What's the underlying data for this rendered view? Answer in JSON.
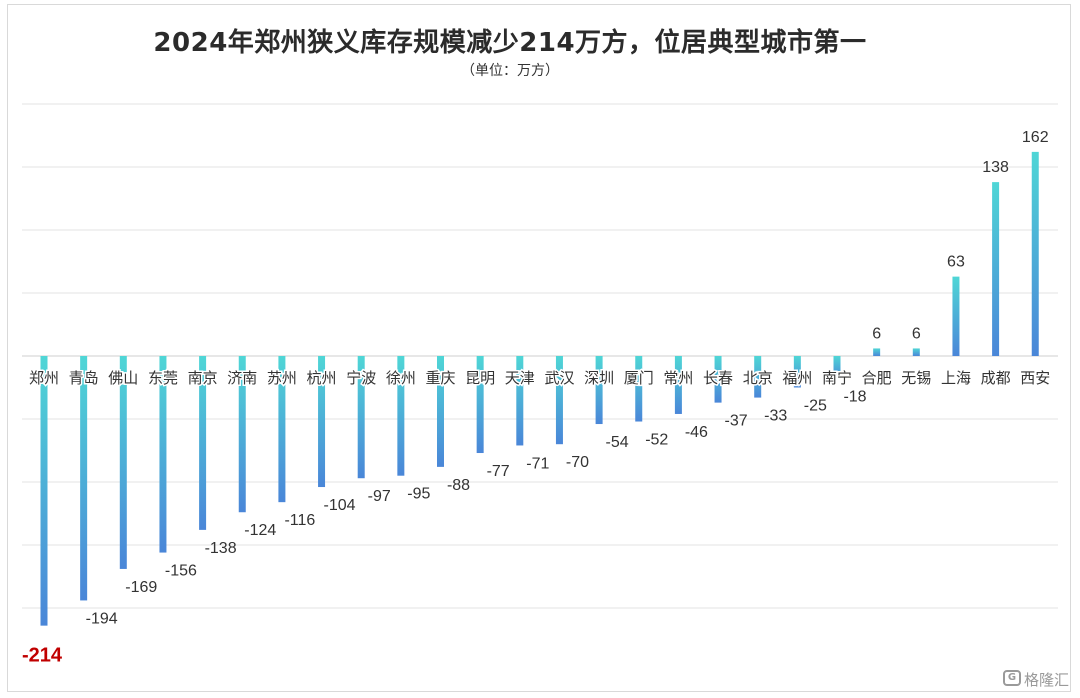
{
  "watermark_text": "格隆汇",
  "colors": {
    "bar_top": "#4fd6d6",
    "bar_bottom": "#4a86d8",
    "grid": "#e3e3e3",
    "label": "#333333",
    "highlight": "#c00000"
  },
  "chart_data": {
    "type": "bar",
    "title": "2024年郑州狭义库存规模减少214万方，位居典型城市第一",
    "unit_label": "（单位：万方）",
    "categories": [
      "郑州",
      "青岛",
      "佛山",
      "东莞",
      "南京",
      "济南",
      "苏州",
      "杭州",
      "宁波",
      "徐州",
      "重庆",
      "昆明",
      "天津",
      "武汉",
      "深圳",
      "厦门",
      "常州",
      "长春",
      "北京",
      "福州",
      "南宁",
      "合肥",
      "无锡",
      "上海",
      "成都",
      "西安"
    ],
    "values": [
      -214,
      -194,
      -169,
      -156,
      -138,
      -124,
      -116,
      -104,
      -97,
      -95,
      -88,
      -77,
      -71,
      -70,
      -54,
      -52,
      -46,
      -37,
      -33,
      -25,
      -18,
      6,
      6,
      63,
      138,
      162
    ],
    "highlight_category": "郑州",
    "grid": true,
    "legend": "none"
  }
}
